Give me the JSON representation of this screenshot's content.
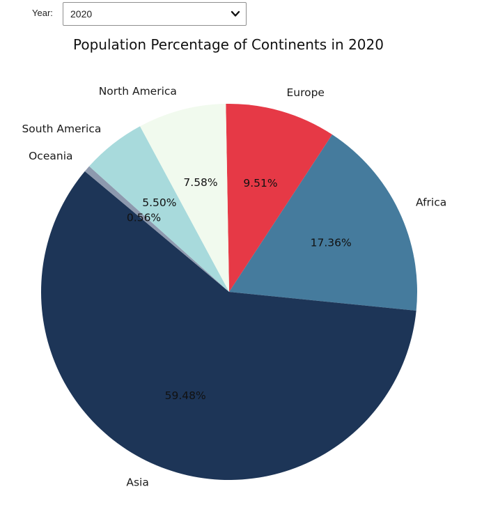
{
  "controls": {
    "year_label": "Year:",
    "year_value": "2020",
    "dropdown_icon": "chevron-down-icon"
  },
  "chart_data": {
    "type": "pie",
    "title": "Population Percentage of Continents in 2020",
    "slices": [
      {
        "label": "Europe",
        "pct_label": "9.51%",
        "value": 9.51,
        "color": "#e63946"
      },
      {
        "label": "Africa",
        "pct_label": "17.36%",
        "value": 17.36,
        "color": "#457b9d"
      },
      {
        "label": "Asia",
        "pct_label": "59.48%",
        "value": 59.48,
        "color": "#1d3557"
      },
      {
        "label": "Oceania",
        "pct_label": "0.56%",
        "value": 0.56,
        "color": "#8d99ae"
      },
      {
        "label": "South America",
        "pct_label": "5.50%",
        "value": 5.5,
        "color": "#a8dadc"
      },
      {
        "label": "North America",
        "pct_label": "7.58%",
        "value": 7.58,
        "color": "#f1faee"
      }
    ],
    "start_angle_deg": 91,
    "direction": "clockwise"
  }
}
